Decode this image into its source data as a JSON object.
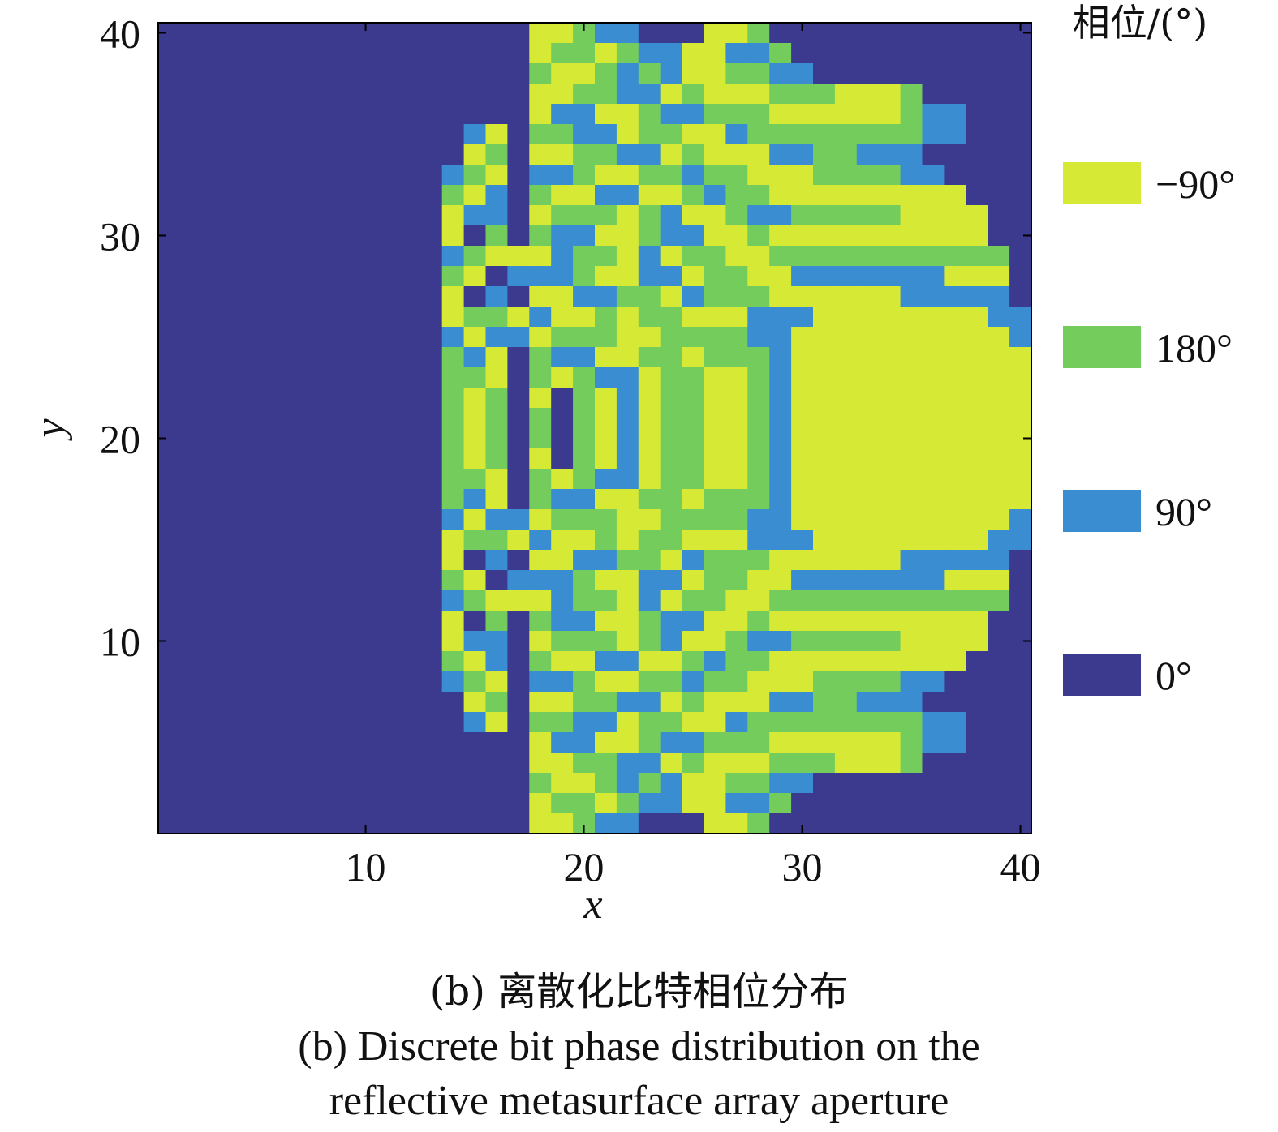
{
  "chart_data": {
    "type": "heatmap",
    "title": "",
    "xlabel": "x",
    "ylabel": "y",
    "xlim": [
      0.5,
      40.5
    ],
    "ylim": [
      0.5,
      40.5
    ],
    "x_ticks": [
      10,
      20,
      30,
      40
    ],
    "y_ticks": [
      10,
      20,
      30,
      40
    ],
    "grid": false,
    "legend": {
      "title": "相位/(°)",
      "placement": "right",
      "entries": [
        {
          "label": "−90°",
          "color": "#d6e935"
        },
        {
          "label": "180°",
          "color": "#74cc5d"
        },
        {
          "label": "90°",
          "color": "#3a8dd1"
        },
        {
          "label": "0°",
          "color": "#3b3a8f"
        }
      ]
    },
    "state_colors": {
      "0": "#3b3a8f",
      "1": "#3a8dd1",
      "2": "#74cc5d",
      "3": "#d6e935"
    },
    "state_phase": {
      "0": "0°",
      "1": "90°",
      "2": "180°",
      "3": "−90°"
    },
    "grid_size": [
      40,
      40
    ],
    "grid_note": "rows listed from y=40 (top) down to y=1; columns x=1..40; 0=0°,1=90°,2=180°,3=−90°",
    "rows": [
      "0000000000000000033211000332000000000000",
      "0000000000000000032232113311200000000000",
      "0000000000000000023321213322110000000000",
      "0000000000000000033221132333222333200000",
      "0000000000000000031133211222333333211000",
      "0000000000000013022113223312222222211000",
      "0000000000000032033221132333112211100000",
      "0000000000000123011233221223332222110000",
      "0000000000000231023311332122333333333000",
      "0000000000000311032223213321122222333300",
      "0000000000000302021133211332333333333300",
      "0000000000000123331223132233222222222220",
      "0000000000000230111233113223311111113330",
      "0000000000000301033112231222333333111110",
      "0000000000000322313323223331113333333311",
      "0000000000000131132223322221133333333331",
      "0000000000000213021133223222133333333333",
      "0000000000000223023211322332133333333333",
      "0000000000000232030231322332133333333333",
      "0000000000000232020231322332133333333333",
      "0000000000000232020231322332133333333333",
      "0000000000000232030231322332133333333333",
      "0000000000000223023211322332133333333333",
      "0000000000000213021133223222133333333333",
      "0000000000000131132223322221133333333331",
      "0000000000000322313323223331113333333311",
      "0000000000000301033112231222333333111110",
      "0000000000000230111233113223311111113330",
      "0000000000000123331223132233222222222220",
      "0000000000000302021133211332333333333300",
      "0000000000000311032223213321122222333300",
      "0000000000000231023311332122333333333000",
      "0000000000000123011233221223332222110000",
      "0000000000000032033221132333112211100000",
      "0000000000000013022113223312222222211000",
      "0000000000000000031133211222333333211000",
      "0000000000000000033221132333222333200000",
      "0000000000000000023321213322110000000000",
      "0000000000000000032232113311200000000000",
      "0000000000000000033211000332000000000000"
    ]
  },
  "caption": {
    "cn": "(b) 离散化比特相位分布",
    "en_line1": "(b) Discrete bit phase distribution on the",
    "en_line2": "reflective metasurface array aperture"
  }
}
